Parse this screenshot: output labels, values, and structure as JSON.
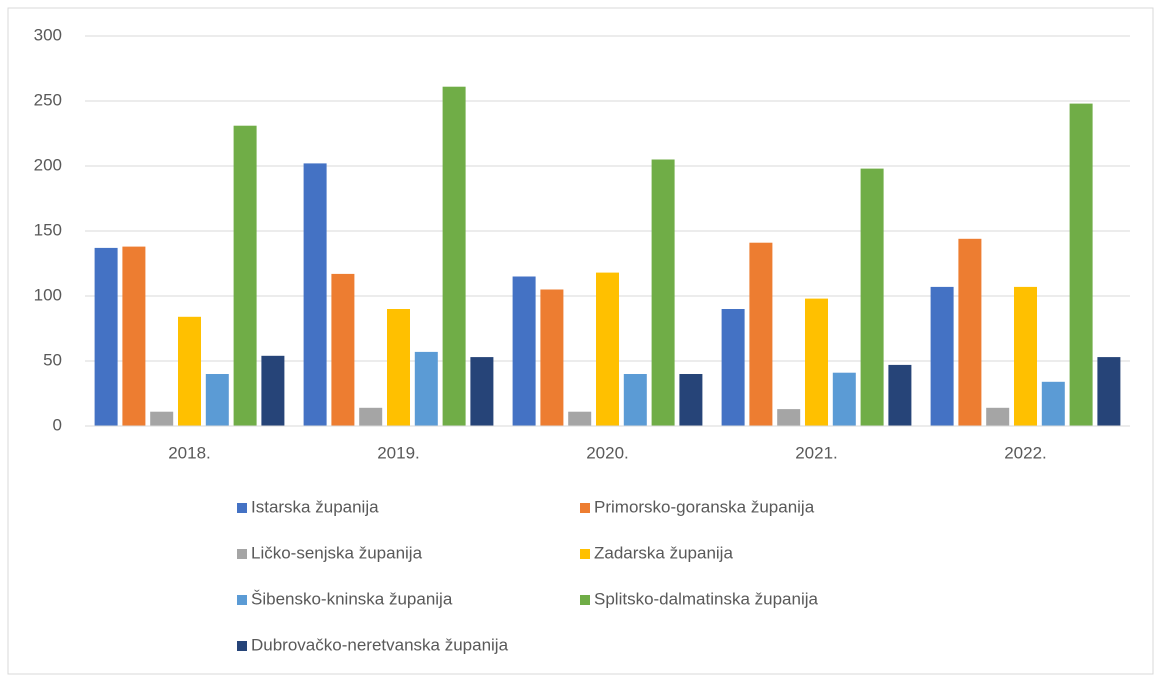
{
  "chart_data": {
    "type": "bar",
    "categories": [
      "2018.",
      "2019.",
      "2020.",
      "2021.",
      "2022."
    ],
    "series": [
      {
        "name": "Istarska županija",
        "color": "#4472c4",
        "values": [
          137,
          202,
          115,
          90,
          107
        ]
      },
      {
        "name": "Primorsko-goranska županija",
        "color": "#ed7d31",
        "values": [
          138,
          117,
          105,
          141,
          144
        ]
      },
      {
        "name": "Ličko-senjska županija",
        "color": "#a5a5a5",
        "values": [
          11,
          14,
          11,
          13,
          14
        ]
      },
      {
        "name": "Zadarska županija",
        "color": "#ffc000",
        "values": [
          84,
          90,
          118,
          98,
          107
        ]
      },
      {
        "name": "Šibensko-kninska županija",
        "color": "#5b9bd5",
        "values": [
          40,
          57,
          40,
          41,
          34
        ]
      },
      {
        "name": "Splitsko-dalmatinska županija",
        "color": "#70ad47",
        "values": [
          231,
          261,
          205,
          198,
          248
        ]
      },
      {
        "name": "Dubrovačko-neretvanska županija",
        "color": "#264478",
        "values": [
          54,
          53,
          40,
          47,
          53
        ]
      }
    ],
    "ylim": [
      0,
      300
    ],
    "yticks": [
      0,
      50,
      100,
      150,
      200,
      250,
      300
    ],
    "grid": true,
    "legend": "bottom"
  }
}
